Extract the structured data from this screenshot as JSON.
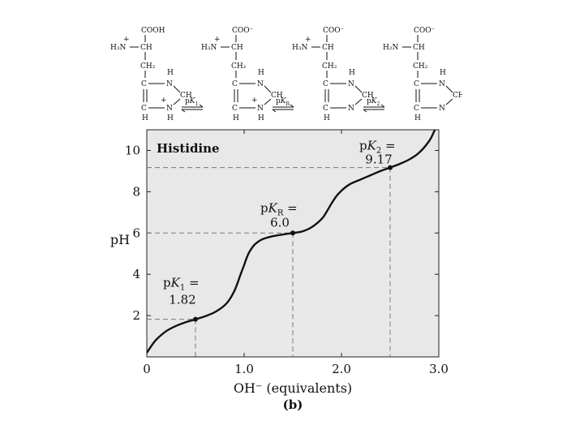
{
  "scheme": {
    "species": [
      {
        "top_group": "COOH",
        "amine": "H₃N",
        "amine_charge": "+",
        "alpha": "CH",
        "beta": "CH₂",
        "ring_c": "C",
        "ring_ch": "CH",
        "ring_n1": "N",
        "ring_n1_h": "H",
        "ring_n3": "N",
        "ring_n3_h": "H",
        "ring_charge": "+",
        "ring_c_h": "H"
      },
      {
        "top_group": "COO⁻",
        "amine": "H₃N",
        "amine_charge": "+",
        "alpha": "CH",
        "beta": "CH₂",
        "ring_c": "C",
        "ring_ch": "CH",
        "ring_n1": "N",
        "ring_n1_h": "H",
        "ring_n3": "N",
        "ring_n3_h": "H",
        "ring_charge": "+",
        "ring_c_h": "H"
      },
      {
        "top_group": "COO⁻",
        "amine": "H₃N",
        "amine_charge": "+",
        "alpha": "CH",
        "beta": "CH₂",
        "ring_c": "C",
        "ring_ch": "CH",
        "ring_n1": "N",
        "ring_n1_h": "H",
        "ring_n3": "N",
        "ring_n3_h": "",
        "ring_charge": "",
        "ring_c_h": "H"
      },
      {
        "top_group": "COO⁻",
        "amine": "H₂N",
        "amine_charge": "",
        "alpha": "CH",
        "beta": "CH₂",
        "ring_c": "C",
        "ring_ch": "CH",
        "ring_n1": "N",
        "ring_n1_h": "H",
        "ring_n3": "N",
        "ring_n3_h": "",
        "ring_charge": "",
        "ring_c_h": "H"
      }
    ],
    "arrows": [
      {
        "p": "p",
        "k": "K",
        "sub": "1"
      },
      {
        "p": "p",
        "k": "K",
        "sub": "R"
      },
      {
        "p": "p",
        "k": "K",
        "sub": "2"
      }
    ]
  },
  "chart_data": {
    "type": "line",
    "title": "Histidine",
    "xlabel": "OH⁻ (equivalents)",
    "ylabel": "pH",
    "panel_label": "(b)",
    "xlim": [
      0,
      3.0
    ],
    "ylim": [
      0,
      11
    ],
    "x_ticks": [
      0,
      1.0,
      2.0,
      3.0
    ],
    "x_tick_labels": [
      "0",
      "1.0",
      "2.0",
      "3.0"
    ],
    "y_ticks": [
      2,
      4,
      6,
      8,
      10
    ],
    "y_tick_labels": [
      "2",
      "4",
      "6",
      "8",
      "10"
    ],
    "grid": false,
    "background": "#e8e8e8",
    "pka_points": [
      {
        "x": 0.5,
        "y": 1.82,
        "label_p": "p",
        "label_k": "K",
        "label_sub": "1",
        "label_eq": " =",
        "value": "1.82"
      },
      {
        "x": 1.5,
        "y": 6.0,
        "label_p": "p",
        "label_k": "K",
        "label_sub": "R",
        "label_eq": " =",
        "value": "6.0"
      },
      {
        "x": 2.5,
        "y": 9.17,
        "label_p": "p",
        "label_k": "K",
        "label_sub": "2",
        "label_eq": " =",
        "value": "9.17"
      }
    ],
    "curve": {
      "x": [
        0,
        0.05,
        0.1,
        0.2,
        0.3,
        0.4,
        0.5,
        0.6,
        0.7,
        0.8,
        0.85,
        0.9,
        0.93,
        0.96,
        0.98,
        1.0,
        1.02,
        1.05,
        1.1,
        1.15,
        1.2,
        1.3,
        1.4,
        1.5,
        1.6,
        1.7,
        1.8,
        1.85,
        1.9,
        1.95,
        2.0,
        2.05,
        2.1,
        2.2,
        2.3,
        2.4,
        2.5,
        2.6,
        2.7,
        2.8,
        2.9,
        2.95,
        3.0
      ],
      "y": [
        0.2,
        0.55,
        0.85,
        1.25,
        1.5,
        1.68,
        1.82,
        1.97,
        2.17,
        2.5,
        2.78,
        3.2,
        3.55,
        3.95,
        4.2,
        4.45,
        4.72,
        5.05,
        5.4,
        5.6,
        5.72,
        5.85,
        5.93,
        6.0,
        6.08,
        6.3,
        6.7,
        7.05,
        7.45,
        7.8,
        8.05,
        8.25,
        8.4,
        8.6,
        8.8,
        9.0,
        9.17,
        9.35,
        9.57,
        9.9,
        10.45,
        10.9,
        11.4
      ]
    }
  }
}
